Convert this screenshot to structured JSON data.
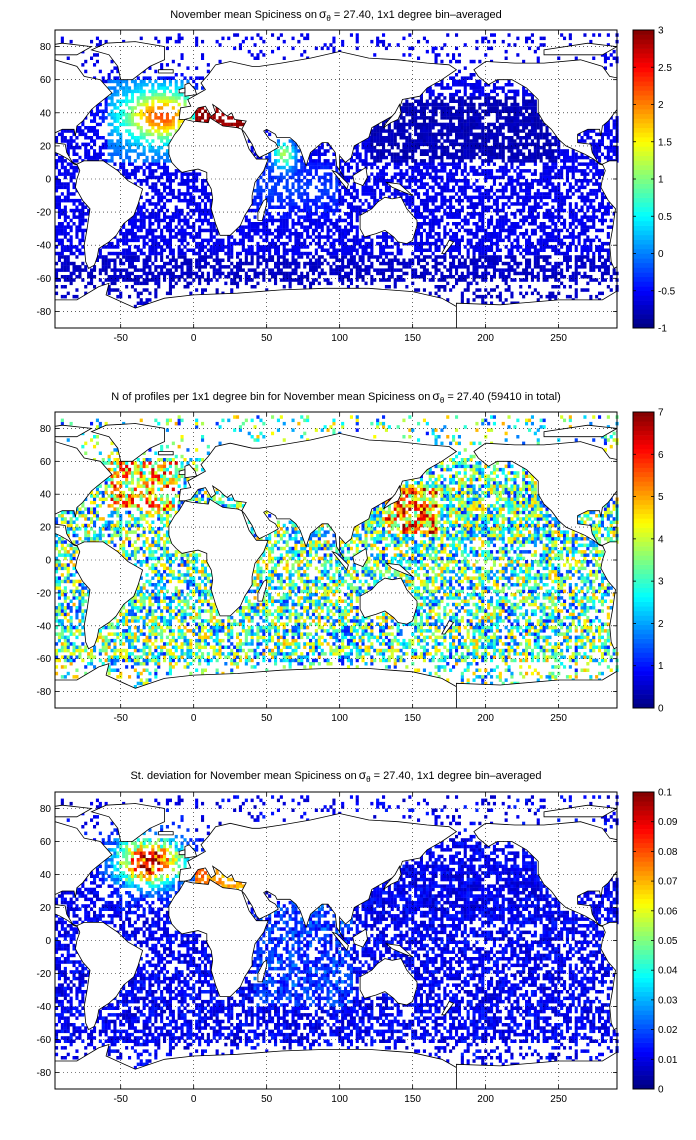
{
  "chart_data": [
    {
      "type": "heatmap",
      "title": "November mean Spiciness on",
      "title_symbol": "σ",
      "title_subscript": "θ",
      "title_rest": " = 27.40, 1x1 degree bin–averaged",
      "xlim": [
        -95,
        290
      ],
      "ylim": [
        -90,
        90
      ],
      "x_ticks": [
        -50,
        0,
        50,
        100,
        150,
        200,
        250
      ],
      "y_ticks": [
        80,
        60,
        40,
        20,
        0,
        -20,
        -40,
        -60,
        -80
      ],
      "grid": true,
      "grid_style": "dotted",
      "colorbar": {
        "min": -1,
        "max": 3,
        "ticks": [
          3,
          2.5,
          2,
          1.5,
          1,
          0.5,
          0,
          -0.5,
          -1
        ],
        "colormap": "jet"
      }
    },
    {
      "type": "heatmap",
      "title": "N of profiles per 1x1 degree bin for November mean Spiciness on",
      "title_symbol": "σ",
      "title_subscript": "θ",
      "title_rest": " = 27.40 (59410 in total)",
      "xlim": [
        -95,
        290
      ],
      "ylim": [
        -90,
        90
      ],
      "x_ticks": [
        -50,
        0,
        50,
        100,
        150,
        200,
        250
      ],
      "y_ticks": [
        80,
        60,
        40,
        20,
        0,
        -20,
        -40,
        -60,
        -80
      ],
      "grid": true,
      "grid_style": "dotted",
      "colorbar": {
        "min": 0,
        "max": 7,
        "ticks": [
          7,
          6,
          5,
          4,
          3,
          2,
          1,
          0
        ],
        "colormap": "jet"
      }
    },
    {
      "type": "heatmap",
      "title": "St. deviation for November mean Spiciness on",
      "title_symbol": "σ",
      "title_subscript": "θ",
      "title_rest": " = 27.40, 1x1 degree bin–averaged",
      "xlim": [
        -95,
        290
      ],
      "ylim": [
        -90,
        90
      ],
      "x_ticks": [
        -50,
        0,
        50,
        100,
        150,
        200,
        250
      ],
      "y_ticks": [
        80,
        60,
        40,
        20,
        0,
        -20,
        -40,
        -60,
        -80
      ],
      "grid": true,
      "grid_style": "dotted",
      "colorbar": {
        "min": 0,
        "max": 0.1,
        "ticks": [
          0.1,
          0.09,
          0.08,
          0.07,
          0.06,
          0.05,
          0.04,
          0.03,
          0.02,
          0.01,
          0
        ],
        "colormap": "jet"
      }
    }
  ]
}
